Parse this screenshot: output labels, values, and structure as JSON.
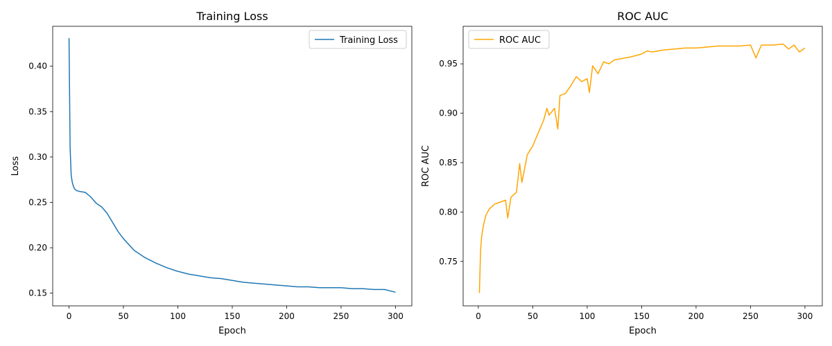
{
  "chart_data": [
    {
      "type": "line",
      "title": "Training Loss",
      "xlabel": "Epoch",
      "ylabel": "Loss",
      "xlim": [
        -15,
        315
      ],
      "ylim": [
        0.136,
        0.444
      ],
      "xticks": [
        0,
        50,
        100,
        150,
        200,
        250,
        300
      ],
      "yticks": [
        0.15,
        0.2,
        0.25,
        0.3,
        0.35,
        0.4
      ],
      "yticks_fmt": 2,
      "legend": "top-right",
      "grid": false,
      "series": [
        {
          "name": "Training Loss",
          "color": "#1f77b4",
          "x": [
            0,
            1,
            2,
            3,
            4,
            5,
            7,
            10,
            15,
            20,
            25,
            30,
            35,
            40,
            45,
            50,
            60,
            70,
            80,
            90,
            100,
            110,
            120,
            130,
            140,
            150,
            160,
            170,
            180,
            190,
            200,
            210,
            220,
            230,
            240,
            250,
            260,
            270,
            280,
            290,
            300
          ],
          "y": [
            0.431,
            0.31,
            0.28,
            0.272,
            0.268,
            0.265,
            0.263,
            0.262,
            0.261,
            0.256,
            0.249,
            0.245,
            0.238,
            0.228,
            0.218,
            0.21,
            0.197,
            0.189,
            0.183,
            0.178,
            0.174,
            0.171,
            0.169,
            0.167,
            0.166,
            0.164,
            0.162,
            0.161,
            0.16,
            0.159,
            0.158,
            0.157,
            0.157,
            0.156,
            0.156,
            0.156,
            0.155,
            0.155,
            0.154,
            0.154,
            0.151
          ]
        }
      ]
    },
    {
      "type": "line",
      "title": "ROC AUC",
      "xlabel": "Epoch",
      "ylabel": "ROC AUC",
      "xlim": [
        -13.95,
        315.95
      ],
      "ylim": [
        0.705,
        0.988
      ],
      "xticks": [
        0,
        50,
        100,
        150,
        200,
        250,
        300
      ],
      "yticks": [
        0.75,
        0.8,
        0.85,
        0.9,
        0.95
      ],
      "yticks_fmt": 2,
      "legend": "top-left",
      "grid": false,
      "series": [
        {
          "name": "ROC AUC",
          "color": "#ffa500",
          "x": [
            1,
            2,
            3,
            4,
            5,
            7,
            10,
            15,
            20,
            25,
            27,
            30,
            35,
            38,
            40,
            45,
            50,
            55,
            60,
            63,
            65,
            70,
            73,
            75,
            80,
            85,
            90,
            95,
            100,
            102,
            105,
            110,
            115,
            120,
            125,
            130,
            140,
            150,
            155,
            160,
            170,
            180,
            190,
            200,
            210,
            220,
            230,
            240,
            250,
            255,
            260,
            270,
            280,
            285,
            290,
            295,
            300
          ],
          "y": [
            0.718,
            0.76,
            0.775,
            0.782,
            0.788,
            0.797,
            0.803,
            0.808,
            0.81,
            0.812,
            0.794,
            0.815,
            0.82,
            0.849,
            0.83,
            0.858,
            0.867,
            0.88,
            0.893,
            0.905,
            0.898,
            0.905,
            0.884,
            0.918,
            0.92,
            0.928,
            0.937,
            0.932,
            0.935,
            0.921,
            0.948,
            0.94,
            0.952,
            0.95,
            0.954,
            0.955,
            0.957,
            0.96,
            0.963,
            0.962,
            0.964,
            0.965,
            0.966,
            0.966,
            0.967,
            0.968,
            0.968,
            0.968,
            0.969,
            0.956,
            0.969,
            0.969,
            0.97,
            0.965,
            0.969,
            0.962,
            0.966
          ]
        }
      ]
    }
  ]
}
